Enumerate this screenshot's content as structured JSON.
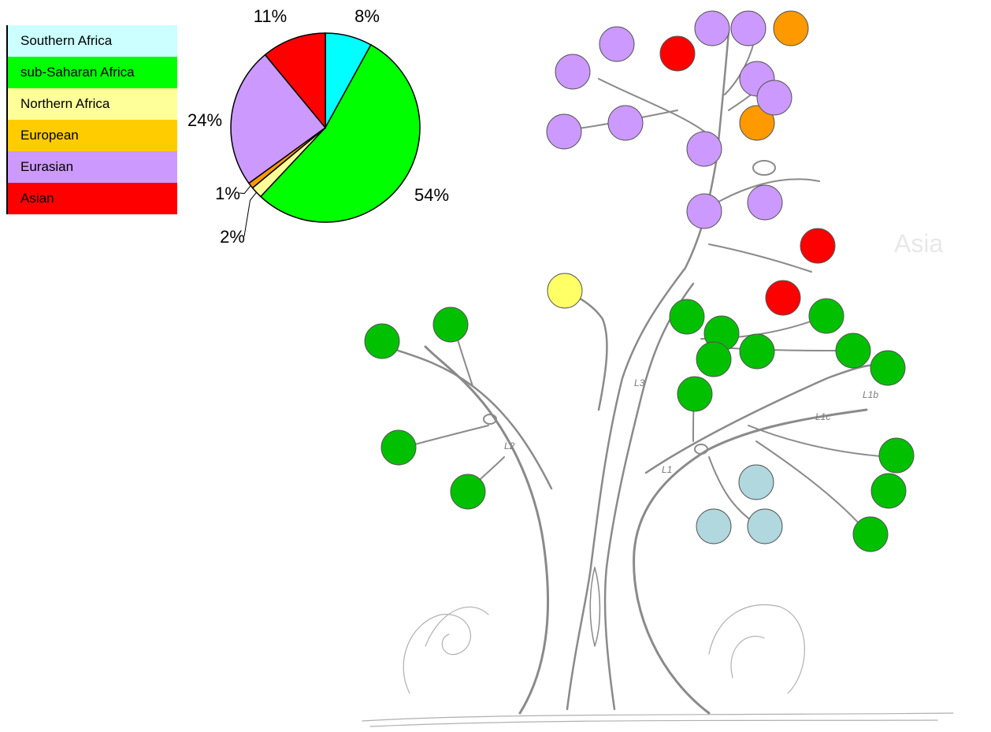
{
  "chart_data": {
    "type": "pie",
    "categories": [
      "Southern Africa",
      "sub-Saharan Africa",
      "Northern Africa",
      "European",
      "Eurasian",
      "Asian"
    ],
    "values": [
      8,
      54,
      2,
      1,
      24,
      11
    ],
    "labels": [
      "8%",
      "54%",
      "2%",
      "1%",
      "24%",
      "11%"
    ],
    "legend_position": "top-left"
  },
  "colors": {
    "Southern Africa": "#ccffff",
    "sub-Saharan Africa": "#00ff00",
    "Northern Africa": "#ffff99",
    "European": "#ffcc00",
    "Eurasian": "#cc99ff",
    "Asian": "#ff0000",
    "pie_southern_africa_slice": "#00ffff",
    "pie_european_slice": "#ff9900",
    "tree_sub_saharan": "#00c000",
    "tree_southern": "#b0d8de",
    "tree_northern": "#ffff66",
    "tree_european": "#ff9900",
    "tree_eurasian": "#cc99ff",
    "tree_asian": "#ff0000"
  },
  "tree_labels": {
    "faded_region": "Asia",
    "l1": "L1",
    "l2": "L2",
    "l3": "L3",
    "l1b": "L1b",
    "l1c": "L1c"
  }
}
